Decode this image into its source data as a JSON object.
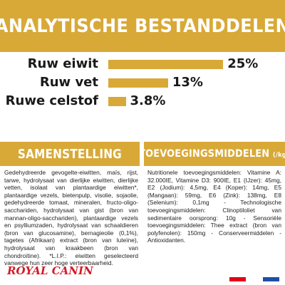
{
  "header": {
    "title": "ANALYTISCHE BESTANDDELEN"
  },
  "analysis": {
    "rows": [
      {
        "label": "Ruw eiwit",
        "value": "25%",
        "percent": 25
      },
      {
        "label": "Ruw vet",
        "value": "13%",
        "percent": 13
      },
      {
        "label": "Ruwe celstof",
        "value": "3.8%",
        "percent": 3.8
      }
    ]
  },
  "composition": {
    "title": "SAMENSTELLING",
    "text": "Gedehydreerde gevogelte-eiwitten, maïs, rijst, tarwe, hydrolysaat van dierlijke eiwitten, dierlijke vetten, isolaat van plantaardige eiwitten*, plantaardige vezels, bietenpulp, visolie, sojaolie, gedehydreerde tomaat, mineralen, fructo-oligo-sacchariden, hydrolysaat van gist (bron van mannan-oligo-sacchariden), plantaardige vezels en psylliumzaden, hydrolysaat van schaaldieren (bron van glucosamine), bernagieolie (0,1%), tagetes (Afrikaan) extract (bron van luteïne), hydrolysaat van kraakbeen (bron van chondroïtine). *L.I.P.: eiwitten geselecteerd vanwege hun zeer hoge verteerbaarheid."
  },
  "additives": {
    "title": "TOEVOEGINGSMIDDELEN",
    "unit": "(/kg)",
    "text": "Nutritionele toevoegingsmiddelen: Vitamine A: 32.000IE, Vitamine D3: 900IE, E1 (IJzer): 45mg, E2 (Jodium): 4,5mg, E4 (Koper): 14mg, E5 (Mangaan): 59mg, E6 (Zink): 138mg, E8 (Selenium): 0,1mg - Technologische toevoegingsmiddelen: Clinoptiloliet van sedimentaire oorsprong: 10g - Sensoriële toevoegingsmiddelen: Thee extract (bron van polyfenolen): 150mg - Conserveermiddelen - Antioxidanten."
  },
  "footer": {
    "brand": "ROYAL CANIN",
    "crown_icon": "crown-icon"
  },
  "colors": {
    "accent": "#d8a937",
    "brand_red": "#d21b27",
    "flag": [
      "#e2001a",
      "#ffffff",
      "#1f4fa3"
    ]
  }
}
